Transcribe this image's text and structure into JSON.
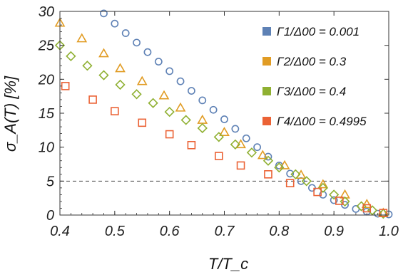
{
  "chart_data": {
    "type": "scatter",
    "xlabel": "T/T_c",
    "ylabel": "σ_A(T) [%]",
    "xlim": [
      0.4,
      1.0
    ],
    "ylim": [
      0,
      30
    ],
    "x_ticks": [
      "0.4",
      "0.5",
      "0.6",
      "0.7",
      "0.8",
      "0.9",
      "1.0"
    ],
    "y_ticks": [
      "0",
      "5",
      "10",
      "15",
      "20",
      "25",
      "30"
    ],
    "reference_line": {
      "y": 5,
      "style": "dashed"
    },
    "legend_position": "top-right",
    "series": [
      {
        "name": "Γ1/Δ00 = 0.001",
        "marker": "circle",
        "color": "#5E81B5",
        "points": [
          [
            0.48,
            29.7
          ],
          [
            0.5,
            28.2
          ],
          [
            0.52,
            26.8
          ],
          [
            0.54,
            25.4
          ],
          [
            0.56,
            24.0
          ],
          [
            0.58,
            22.6
          ],
          [
            0.6,
            21.2
          ],
          [
            0.62,
            19.7
          ],
          [
            0.64,
            18.3
          ],
          [
            0.66,
            16.9
          ],
          [
            0.68,
            15.5
          ],
          [
            0.7,
            14.1
          ],
          [
            0.72,
            12.7
          ],
          [
            0.74,
            11.3
          ],
          [
            0.76,
            10.0
          ],
          [
            0.78,
            8.6
          ],
          [
            0.8,
            7.3
          ],
          [
            0.82,
            6.1
          ],
          [
            0.84,
            5.0
          ],
          [
            0.86,
            4.0
          ],
          [
            0.88,
            3.0
          ],
          [
            0.9,
            2.2
          ],
          [
            0.92,
            1.5
          ],
          [
            0.94,
            0.9
          ],
          [
            0.96,
            0.5
          ],
          [
            0.98,
            0.2
          ],
          [
            1.0,
            0.1
          ]
        ]
      },
      {
        "name": "Γ2/Δ00 = 0.3",
        "marker": "triangle",
        "color": "#E19C24",
        "points": [
          [
            0.4,
            28.3
          ],
          [
            0.44,
            26.0
          ],
          [
            0.48,
            23.8
          ],
          [
            0.51,
            21.6
          ],
          [
            0.55,
            19.7
          ],
          [
            0.59,
            17.6
          ],
          [
            0.62,
            15.8
          ],
          [
            0.66,
            14.0
          ],
          [
            0.7,
            12.2
          ],
          [
            0.73,
            10.4
          ],
          [
            0.77,
            8.8
          ],
          [
            0.81,
            7.3
          ],
          [
            0.84,
            5.9
          ],
          [
            0.88,
            4.5
          ],
          [
            0.92,
            3.0
          ],
          [
            0.96,
            1.6
          ],
          [
            0.99,
            0.3
          ]
        ]
      },
      {
        "name": "Γ3/Δ00 = 0.4",
        "marker": "diamond",
        "color": "#8FB032",
        "points": [
          [
            0.4,
            25.0
          ],
          [
            0.42,
            23.4
          ],
          [
            0.45,
            22.0
          ],
          [
            0.48,
            20.6
          ],
          [
            0.51,
            19.2
          ],
          [
            0.54,
            17.8
          ],
          [
            0.57,
            16.5
          ],
          [
            0.6,
            15.2
          ],
          [
            0.63,
            14.0
          ],
          [
            0.66,
            12.8
          ],
          [
            0.69,
            11.5
          ],
          [
            0.72,
            10.4
          ],
          [
            0.75,
            9.2
          ],
          [
            0.78,
            8.0
          ],
          [
            0.8,
            7.0
          ],
          [
            0.83,
            6.0
          ],
          [
            0.85,
            5.0
          ],
          [
            0.88,
            4.0
          ],
          [
            0.9,
            3.0
          ],
          [
            0.92,
            2.0
          ],
          [
            0.95,
            1.3
          ],
          [
            0.97,
            0.7
          ],
          [
            0.99,
            0.2
          ]
        ]
      },
      {
        "name": "Γ4/Δ00 = 0.4995",
        "marker": "square",
        "color": "#EB6235",
        "points": [
          [
            0.41,
            19.0
          ],
          [
            0.46,
            17.0
          ],
          [
            0.5,
            15.3
          ],
          [
            0.55,
            13.6
          ],
          [
            0.6,
            11.9
          ],
          [
            0.64,
            10.3
          ],
          [
            0.69,
            8.7
          ],
          [
            0.73,
            7.3
          ],
          [
            0.78,
            6.0
          ],
          [
            0.82,
            4.7
          ],
          [
            0.87,
            3.4
          ],
          [
            0.91,
            2.1
          ],
          [
            0.96,
            1.0
          ],
          [
            0.99,
            0.3
          ]
        ]
      }
    ]
  }
}
